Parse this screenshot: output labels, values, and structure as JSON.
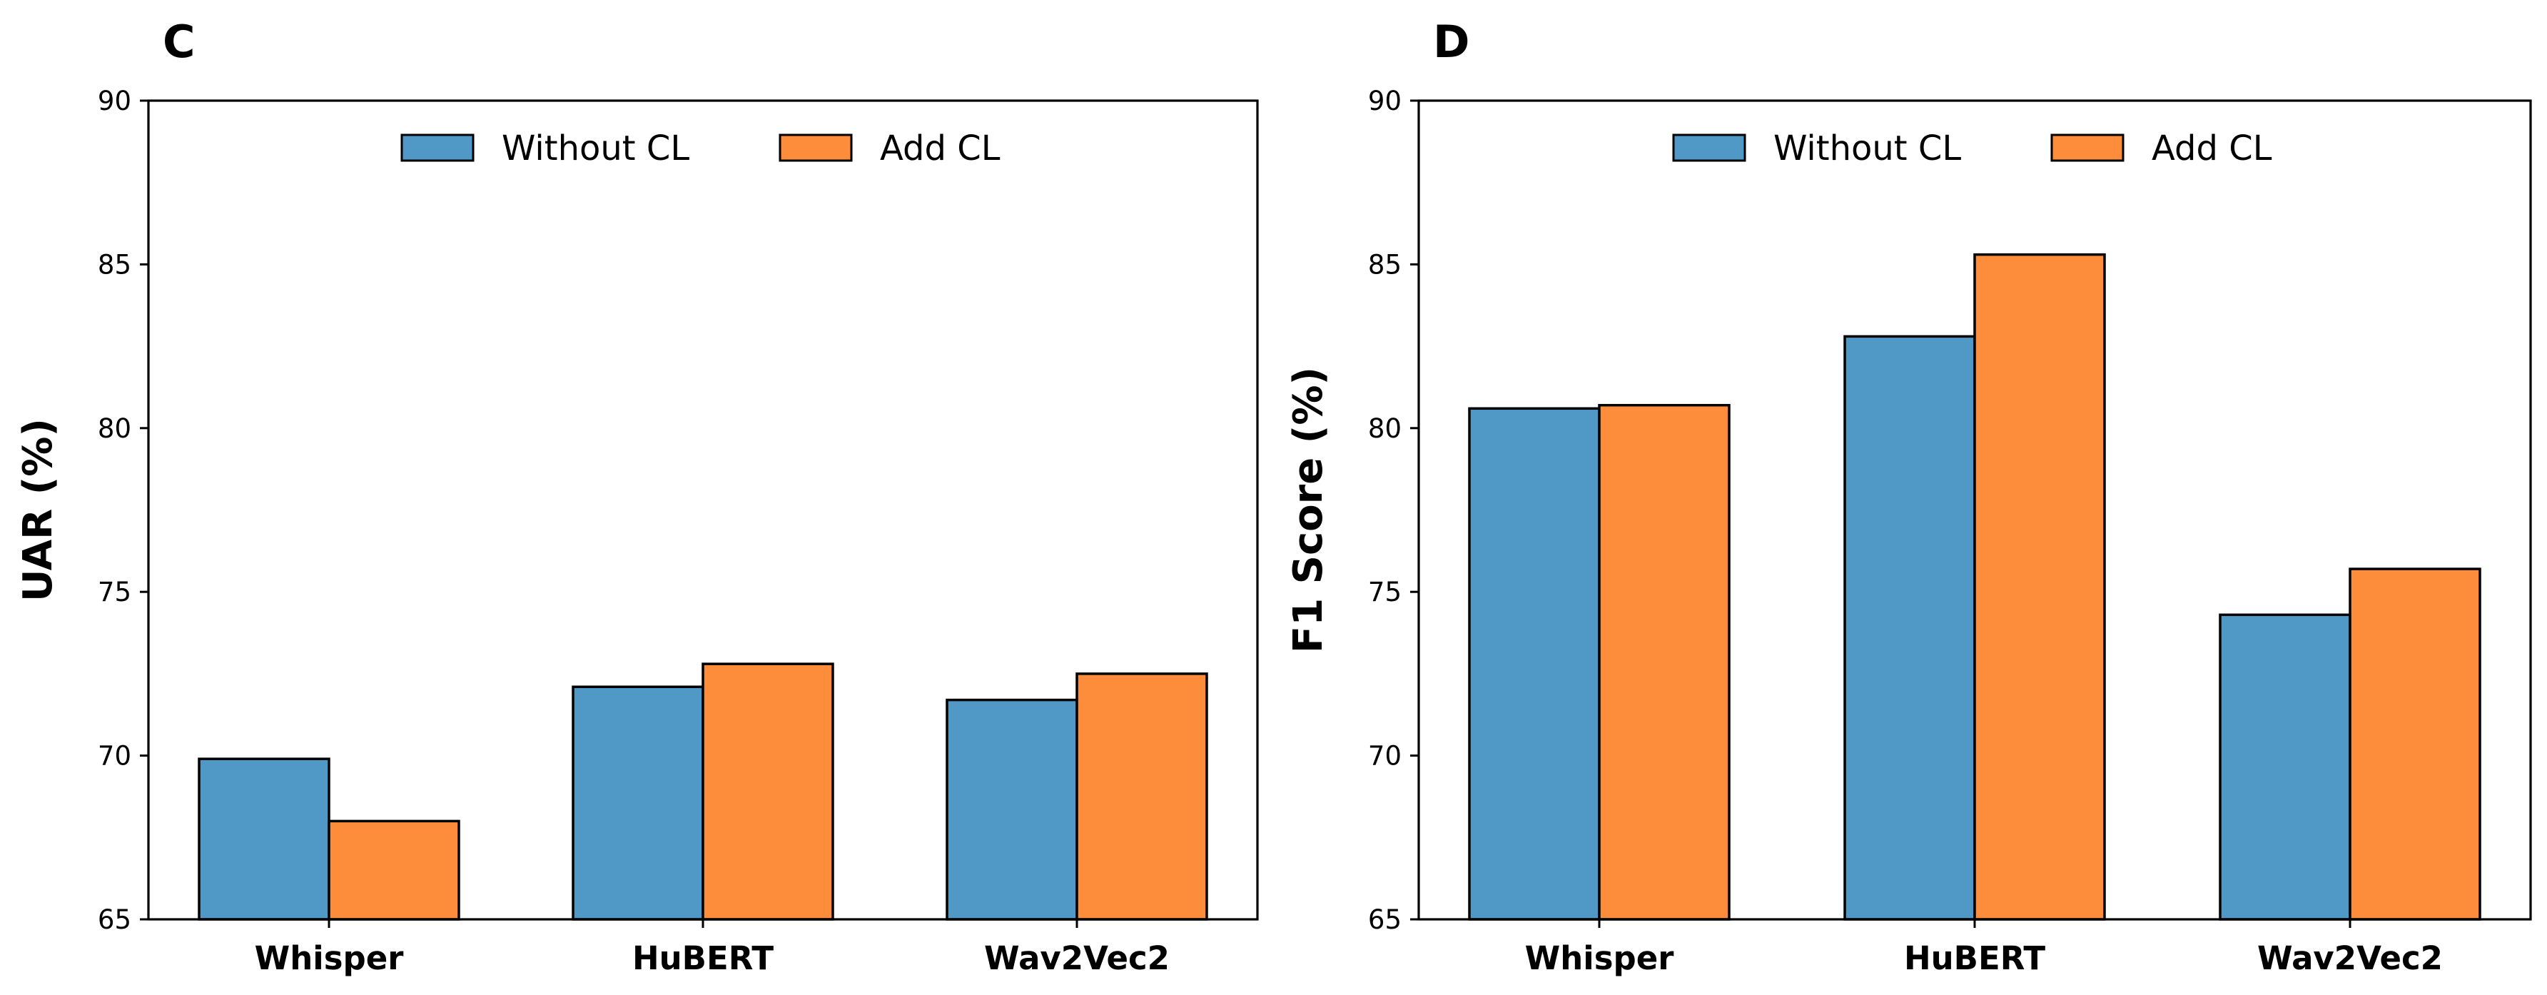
{
  "chart_data": [
    {
      "type": "bar",
      "panel_label": "C",
      "title": "",
      "xlabel": "",
      "ylabel": "UAR (%)",
      "ylim": [
        65,
        90
      ],
      "yticks": [
        65,
        70,
        75,
        80,
        85,
        90
      ],
      "categories": [
        "Whisper",
        "HuBERT",
        "Wav2Vec2"
      ],
      "series": [
        {
          "name": "Without CL",
          "color": "#5098c6",
          "values": [
            69.9,
            72.1,
            71.7
          ]
        },
        {
          "name": "Add CL",
          "color": "#fd8c3b",
          "values": [
            68.0,
            72.8,
            72.5
          ]
        }
      ],
      "legend": "upper-center",
      "grid": false
    },
    {
      "type": "bar",
      "panel_label": "D",
      "title": "",
      "xlabel": "",
      "ylabel": "F1 Score (%)",
      "ylim": [
        65,
        90
      ],
      "yticks": [
        65,
        70,
        75,
        80,
        85,
        90
      ],
      "categories": [
        "Whisper",
        "HuBERT",
        "Wav2Vec2"
      ],
      "series": [
        {
          "name": "Without CL",
          "color": "#5098c6",
          "values": [
            80.6,
            82.8,
            74.3
          ]
        },
        {
          "name": "Add CL",
          "color": "#fd8c3b",
          "values": [
            80.7,
            85.3,
            75.7
          ]
        }
      ],
      "legend": "upper-center",
      "grid": false
    }
  ]
}
